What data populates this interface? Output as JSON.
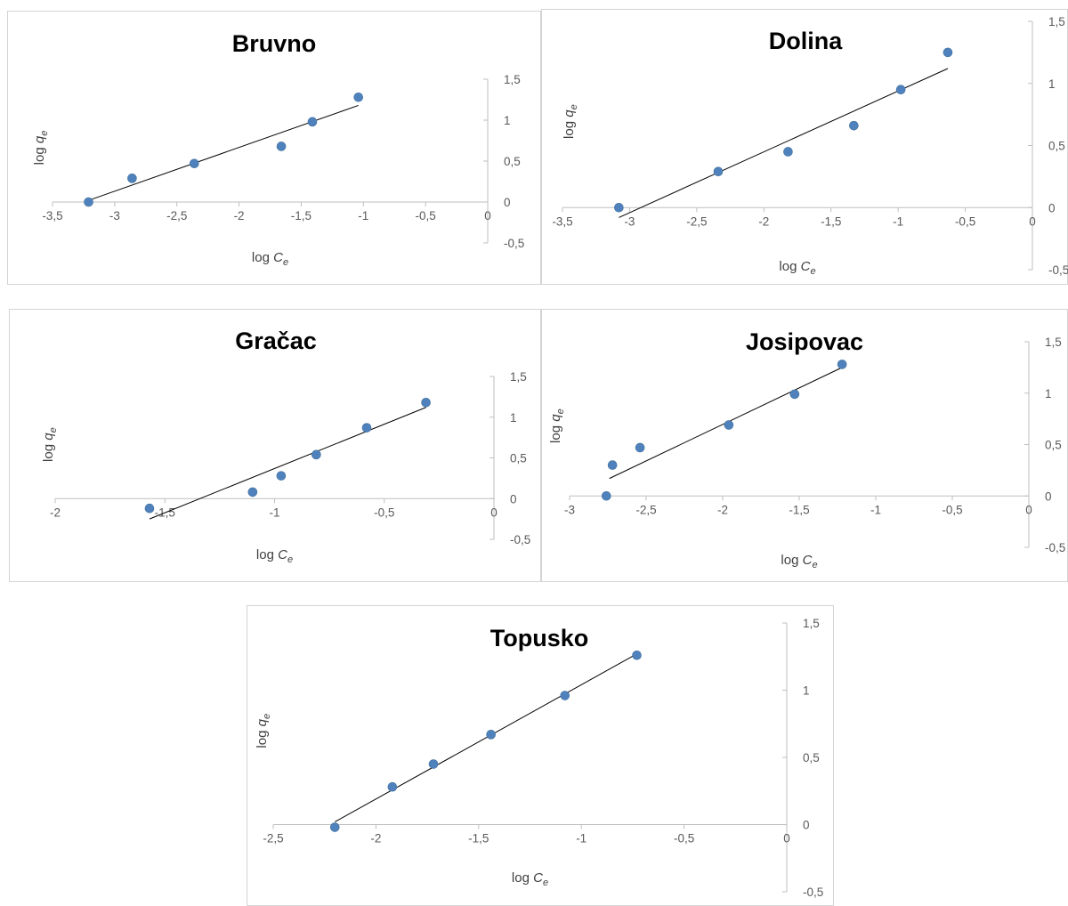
{
  "chart_data": [
    {
      "type": "scatter",
      "title": "Bruvno",
      "xlabel": {
        "base": "log ",
        "var": "C",
        "sub": "e"
      },
      "ylabel": {
        "base": "log ",
        "var": "q",
        "sub": "e"
      },
      "xlim": [
        -3.5,
        0
      ],
      "ylim": [
        -0.5,
        1.5
      ],
      "xticks": [
        "-3,5",
        "-3",
        "-2,5",
        "-2",
        "-1,5",
        "-1",
        "-0,5",
        "0"
      ],
      "yticks": [
        "-0,5",
        "0",
        "0,5",
        "1",
        "1,5"
      ],
      "grid": false,
      "legend": "none",
      "points": [
        [
          -3.21,
          0.0
        ],
        [
          -2.86,
          0.29
        ],
        [
          -2.36,
          0.47
        ],
        [
          -1.66,
          0.68
        ],
        [
          -1.41,
          0.98
        ],
        [
          -1.04,
          1.28
        ]
      ],
      "trendline": [
        [
          -3.21,
          0.02
        ],
        [
          -1.04,
          1.18
        ]
      ]
    },
    {
      "type": "scatter",
      "title": "Dolina",
      "xlabel": {
        "base": "log ",
        "var": "C",
        "sub": "e"
      },
      "ylabel": {
        "base": "log ",
        "var": "q",
        "sub": "e"
      },
      "xlim": [
        -3.5,
        0
      ],
      "ylim": [
        -0.5,
        1.5
      ],
      "xticks": [
        "-3,5",
        "-3",
        "-2,5",
        "-2",
        "-1,5",
        "-1",
        "-0,5",
        "0"
      ],
      "yticks": [
        "-0,5",
        "0",
        "0,5",
        "1",
        "1,5"
      ],
      "grid": false,
      "legend": "none",
      "points": [
        [
          -3.08,
          0.0
        ],
        [
          -2.34,
          0.29
        ],
        [
          -1.82,
          0.45
        ],
        [
          -1.33,
          0.66
        ],
        [
          -0.98,
          0.95
        ],
        [
          -0.63,
          1.25
        ]
      ],
      "trendline": [
        [
          -3.08,
          -0.08
        ],
        [
          -0.63,
          1.12
        ]
      ]
    },
    {
      "type": "scatter",
      "title": "Gračac",
      "xlabel": {
        "base": "log ",
        "var": "C",
        "sub": "e"
      },
      "ylabel": {
        "base": "log ",
        "var": "q",
        "sub": "e"
      },
      "xlim": [
        -2,
        0
      ],
      "ylim": [
        -0.5,
        1.5
      ],
      "xticks": [
        "-2",
        "-1,5",
        "-1",
        "-0,5",
        "0"
      ],
      "yticks": [
        "-0,5",
        "0",
        "0,5",
        "1",
        "1,5"
      ],
      "grid": false,
      "legend": "none",
      "points": [
        [
          -1.57,
          -0.12
        ],
        [
          -1.1,
          0.08
        ],
        [
          -0.97,
          0.28
        ],
        [
          -0.81,
          0.54
        ],
        [
          -0.58,
          0.87
        ],
        [
          -0.31,
          1.18
        ]
      ],
      "trendline": [
        [
          -1.57,
          -0.25
        ],
        [
          -0.31,
          1.12
        ]
      ]
    },
    {
      "type": "scatter",
      "title": "Josipovac",
      "xlabel": {
        "base": "log ",
        "var": "C",
        "sub": "e"
      },
      "ylabel": {
        "base": "log ",
        "var": "q",
        "sub": "e"
      },
      "xlim": [
        -3,
        0
      ],
      "ylim": [
        -0.5,
        1.5
      ],
      "xticks": [
        "-3",
        "-2,5",
        "-2",
        "-1,5",
        "-1",
        "-0,5",
        "0"
      ],
      "yticks": [
        "-0,5",
        "0",
        "0,5",
        "1",
        "1,5"
      ],
      "grid": false,
      "legend": "none",
      "points": [
        [
          -2.76,
          0.0
        ],
        [
          -2.72,
          0.3
        ],
        [
          -2.54,
          0.47
        ],
        [
          -1.96,
          0.69
        ],
        [
          -1.53,
          0.99
        ],
        [
          -1.22,
          1.28
        ]
      ],
      "trendline": [
        [
          -2.74,
          0.17
        ],
        [
          -1.22,
          1.25
        ]
      ]
    },
    {
      "type": "scatter",
      "title": "Topusko",
      "xlabel": {
        "base": "log ",
        "var": "C",
        "sub": "e"
      },
      "ylabel": {
        "base": "log ",
        "var": "q",
        "sub": "e"
      },
      "xlim": [
        -2.5,
        0
      ],
      "ylim": [
        -0.5,
        1.5
      ],
      "xticks": [
        "-2,5",
        "-2",
        "-1,5",
        "-1",
        "-0,5",
        "0"
      ],
      "yticks": [
        "-0,5",
        "0",
        "0,5",
        "1",
        "1,5"
      ],
      "grid": false,
      "legend": "none",
      "points": [
        [
          -2.2,
          -0.02
        ],
        [
          -1.92,
          0.28
        ],
        [
          -1.72,
          0.45
        ],
        [
          -1.44,
          0.67
        ],
        [
          -1.08,
          0.96
        ],
        [
          -0.73,
          1.26
        ]
      ],
      "trendline": [
        [
          -2.2,
          0.02
        ],
        [
          -0.73,
          1.27
        ]
      ]
    }
  ]
}
